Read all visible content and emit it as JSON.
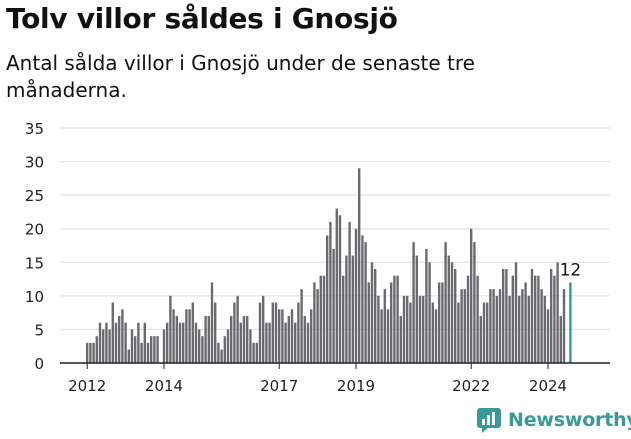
{
  "title": "Tolv villor såldes i Gnosjö",
  "subtitle": "Antal sålda villor i Gnosjö under de senaste tre månaderna.",
  "brand": {
    "name": "Newsworthy",
    "color": "#3a9a96"
  },
  "colors": {
    "bar": "#6b6a6f",
    "highlight": "#2f9e95",
    "grid": "#dddddd",
    "axis": "#222222"
  },
  "chart_data": {
    "type": "bar",
    "title": "Tolv villor såldes i Gnosjö",
    "xlabel": "",
    "ylabel": "",
    "ylim": [
      0,
      35
    ],
    "y_ticks": [
      "0",
      "5",
      "10",
      "15",
      "20",
      "25",
      "30",
      "35"
    ],
    "x_ticks": [
      "2012",
      "2014",
      "2017",
      "2019",
      "2022",
      "2024"
    ],
    "grid": true,
    "start": "2012-01",
    "values": [
      3,
      3,
      3,
      4,
      6,
      5,
      6,
      5,
      9,
      6,
      7,
      8,
      6,
      2,
      5,
      4,
      6,
      3,
      6,
      3,
      4,
      4,
      4,
      0,
      5,
      6,
      10,
      8,
      7,
      6,
      6,
      8,
      8,
      9,
      6,
      5,
      4,
      7,
      7,
      12,
      9,
      3,
      2,
      4,
      5,
      7,
      9,
      10,
      6,
      7,
      7,
      5,
      3,
      3,
      9,
      10,
      6,
      6,
      9,
      9,
      8,
      8,
      6,
      7,
      8,
      6,
      9,
      11,
      7,
      6,
      8,
      12,
      11,
      13,
      13,
      19,
      21,
      17,
      23,
      22,
      13,
      16,
      21,
      16,
      20,
      29,
      19,
      18,
      12,
      15,
      14,
      10,
      8,
      11,
      8,
      12,
      13,
      13,
      7,
      10,
      10,
      9,
      18,
      16,
      10,
      10,
      17,
      15,
      9,
      8,
      12,
      12,
      18,
      16,
      15,
      14,
      9,
      11,
      11,
      13,
      20,
      18,
      13,
      7,
      9,
      9,
      11,
      11,
      10,
      11,
      14,
      14,
      10,
      13,
      15,
      10,
      11,
      12,
      10,
      14,
      13,
      13,
      11,
      10,
      8,
      14,
      13,
      15,
      7,
      11,
      0,
      12
    ],
    "highlight_label": "12"
  }
}
